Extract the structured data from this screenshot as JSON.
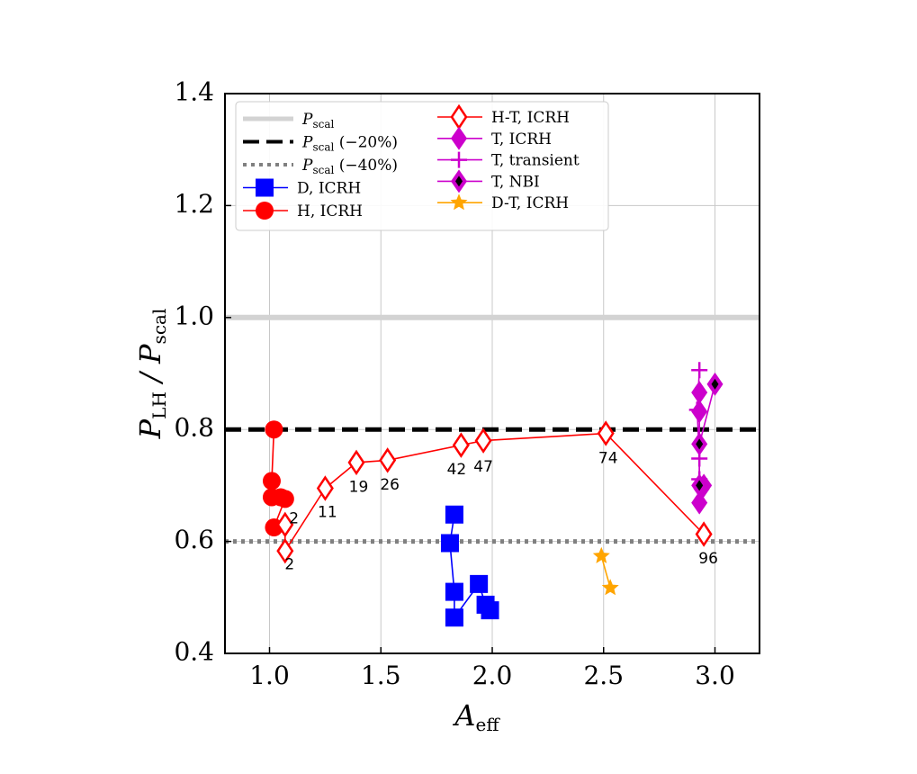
{
  "chart_data": {
    "type": "scatter",
    "xlabel": "A",
    "xlabel_sub": "eff",
    "ylabel_main": "P",
    "ylabel_num_sub": "LH",
    "ylabel_den": "P",
    "ylabel_den_sub": "scal",
    "xlim": [
      0.8,
      3.2
    ],
    "ylim": [
      0.4,
      1.4
    ],
    "xticks": [
      1.0,
      1.5,
      2.0,
      2.5,
      3.0
    ],
    "xtick_labels": [
      "1.0",
      "1.5",
      "2.0",
      "2.5",
      "3.0"
    ],
    "yticks": [
      0.4,
      0.6,
      0.8,
      1.0,
      1.2,
      1.4
    ],
    "ytick_labels": [
      "0.4",
      "0.6",
      "0.8",
      "1.0",
      "1.2",
      "1.4"
    ],
    "grid": true,
    "legend_position": "top",
    "reference_lines": [
      {
        "name_main": "P",
        "name_sub": "scal",
        "name_suffix": "",
        "y": 1.0,
        "color": "#d3d3d3",
        "style": "solid"
      },
      {
        "name_main": "P",
        "name_sub": "scal",
        "name_suffix": "(−20%)",
        "y": 0.8,
        "color": "#000000",
        "style": "dashed"
      },
      {
        "name_main": "P",
        "name_sub": "scal",
        "name_suffix": "(−40%)",
        "y": 0.6,
        "color": "#808080",
        "style": "dotted"
      }
    ],
    "series": [
      {
        "name": "D, ICRH",
        "color": "#0000ff",
        "marker": "square",
        "connected": true,
        "x": [
          1.83,
          1.81,
          1.83,
          1.83,
          1.94,
          1.97,
          1.99
        ],
        "y": [
          0.648,
          0.597,
          0.51,
          0.464,
          0.524,
          0.487,
          0.477
        ]
      },
      {
        "name": "H, ICRH",
        "color": "#ff0000",
        "marker": "circle",
        "connected": true,
        "x": [
          1.02,
          1.01,
          1.01,
          1.05,
          1.07,
          1.02
        ],
        "y": [
          0.8,
          0.708,
          0.679,
          0.679,
          0.676,
          0.625
        ]
      },
      {
        "name": "H-T, ICRH",
        "color": "#ff0000",
        "marker": "diamond-open",
        "connected": true,
        "x": [
          1.07,
          1.07,
          1.25,
          1.39,
          1.53,
          1.86,
          1.96,
          2.51,
          2.95
        ],
        "y": [
          0.63,
          0.583,
          0.695,
          0.741,
          0.745,
          0.772,
          0.78,
          0.793,
          0.613
        ]
      },
      {
        "name": "T, ICRH",
        "color": "#cc00cc",
        "marker": "diamond",
        "connected": true,
        "x": [
          2.93,
          2.93,
          2.93,
          2.94,
          2.95
        ],
        "y": [
          0.866,
          0.832,
          0.669,
          0.694,
          0.7
        ]
      },
      {
        "name": "T, transient",
        "color": "#cc00cc",
        "marker": "plus",
        "connected": true,
        "x": [
          2.93,
          2.92,
          2.93,
          2.93
        ],
        "y": [
          0.906,
          0.835,
          0.748,
          0.711
        ]
      },
      {
        "name": "T, NBI",
        "color": "#cc00cc",
        "marker": "diamond-black-center",
        "connected": true,
        "x": [
          2.93,
          2.93,
          3.0
        ],
        "y": [
          0.7,
          0.774,
          0.881
        ]
      },
      {
        "name": "D-T, ICRH",
        "color": "#ffa500",
        "marker": "star",
        "connected": true,
        "x": [
          2.49,
          2.53
        ],
        "y": [
          0.574,
          0.517
        ]
      }
    ],
    "annotations": [
      {
        "text": "2",
        "x": 1.11,
        "y": 0.64
      },
      {
        "text": "2",
        "x": 1.09,
        "y": 0.558
      },
      {
        "text": "11",
        "x": 1.26,
        "y": 0.652
      },
      {
        "text": "19",
        "x": 1.4,
        "y": 0.697
      },
      {
        "text": "26",
        "x": 1.54,
        "y": 0.701
      },
      {
        "text": "42",
        "x": 1.84,
        "y": 0.728
      },
      {
        "text": "47",
        "x": 1.96,
        "y": 0.733
      },
      {
        "text": "74",
        "x": 2.52,
        "y": 0.748
      },
      {
        "text": "96",
        "x": 2.97,
        "y": 0.569
      }
    ]
  }
}
